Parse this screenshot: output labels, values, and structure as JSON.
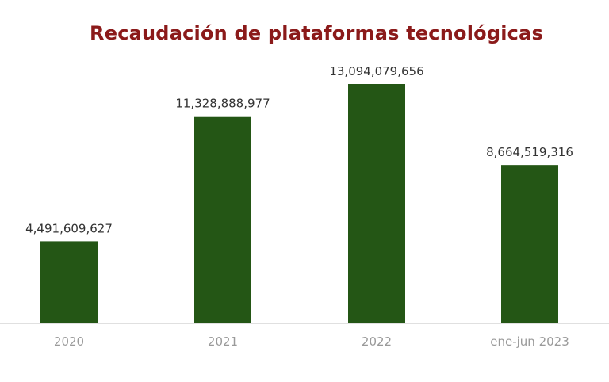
{
  "chart_data": {
    "type": "bar",
    "title": "Recaudación de plataformas tecnológicas",
    "categories": [
      "2020",
      "2021",
      "2022",
      "ene-jun 2023"
    ],
    "values": [
      4491609627,
      11328888977,
      13094079656,
      8664519316
    ],
    "value_labels": [
      "4,491,609,627",
      "11,328,888,977",
      "13,094,079,656",
      "8,664,519,316"
    ],
    "xlabel": "",
    "ylabel": "",
    "ylim": [
      0,
      13500000000
    ],
    "grid": false,
    "legend": "none",
    "colors": {
      "bar": "#245615",
      "title": "#8b1a1a",
      "axis": "#e0e0e0"
    }
  }
}
